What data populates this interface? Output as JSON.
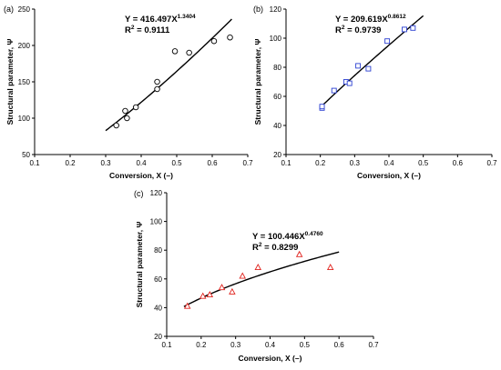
{
  "chart_data": [
    {
      "type": "scatter",
      "panel_label": "(a)",
      "xlabel": "Conversion, X (–)",
      "ylabel": "Structural parameter, Ψ",
      "xlim": [
        0.1,
        0.7
      ],
      "ylim": [
        50,
        250
      ],
      "xticks": [
        "0.1",
        "0.2",
        "0.3",
        "0.4",
        "0.5",
        "0.6",
        "0.7"
      ],
      "yticks": [
        "50",
        "100",
        "150",
        "200",
        "250"
      ],
      "grid": false,
      "marker": "circle",
      "marker_color": "#000000",
      "fit_color": "#000000",
      "fit": {
        "a": 416.497,
        "b": 1.3404,
        "x_range": [
          0.3,
          0.655
        ]
      },
      "equation": {
        "prefix": "Y = 416.497X",
        "exponent": "1.3404",
        "r2_prefix": "R",
        "r2_exponent": "2",
        "r2_value": " = 0.9111"
      },
      "points": [
        {
          "x": 0.33,
          "y": 90
        },
        {
          "x": 0.355,
          "y": 110
        },
        {
          "x": 0.36,
          "y": 100
        },
        {
          "x": 0.385,
          "y": 115
        },
        {
          "x": 0.445,
          "y": 140
        },
        {
          "x": 0.445,
          "y": 150
        },
        {
          "x": 0.495,
          "y": 192
        },
        {
          "x": 0.535,
          "y": 190
        },
        {
          "x": 0.605,
          "y": 206
        },
        {
          "x": 0.65,
          "y": 211
        }
      ]
    },
    {
      "type": "scatter",
      "panel_label": "(b)",
      "xlabel": "Conversion, X (–)",
      "ylabel": "Structural parameter, Ψ",
      "xlim": [
        0.1,
        0.7
      ],
      "ylim": [
        20,
        120
      ],
      "xticks": [
        "0.1",
        "0.2",
        "0.3",
        "0.4",
        "0.5",
        "0.6",
        "0.7"
      ],
      "yticks": [
        "20",
        "40",
        "60",
        "80",
        "100",
        "120"
      ],
      "grid": false,
      "marker": "square",
      "marker_color": "#2a3fd1",
      "fit_color": "#000000",
      "fit": {
        "a": 209.619,
        "b": 0.8612,
        "x_range": [
          0.2,
          0.5
        ]
      },
      "equation": {
        "prefix": "Y = 209.619X",
        "exponent": "0.8612",
        "r2_prefix": "R",
        "r2_exponent": "2",
        "r2_value": " = 0.9739"
      },
      "points": [
        {
          "x": 0.205,
          "y": 52
        },
        {
          "x": 0.205,
          "y": 53
        },
        {
          "x": 0.24,
          "y": 64
        },
        {
          "x": 0.275,
          "y": 70
        },
        {
          "x": 0.285,
          "y": 69
        },
        {
          "x": 0.31,
          "y": 81
        },
        {
          "x": 0.34,
          "y": 79
        },
        {
          "x": 0.395,
          "y": 98
        },
        {
          "x": 0.445,
          "y": 106
        },
        {
          "x": 0.47,
          "y": 107
        }
      ]
    },
    {
      "type": "scatter",
      "panel_label": "(c)",
      "xlabel": "Conversion, X (–)",
      "ylabel": "Structural parameter, Ψ",
      "xlim": [
        0.1,
        0.7
      ],
      "ylim": [
        20,
        120
      ],
      "xticks": [
        "0.1",
        "0.2",
        "0.3",
        "0.4",
        "0.5",
        "0.6",
        "0.7"
      ],
      "yticks": [
        "20",
        "40",
        "60",
        "80",
        "100",
        "120"
      ],
      "grid": false,
      "marker": "triangle",
      "marker_color": "#e0201b",
      "fit_color": "#000000",
      "fit": {
        "a": 100.446,
        "b": 0.476,
        "x_range": [
          0.15,
          0.6
        ]
      },
      "equation": {
        "prefix": "Y = 100.446X",
        "exponent": "0.4760",
        "r2_prefix": "R",
        "r2_exponent": "2",
        "r2_value": " = 0.8299"
      },
      "points": [
        {
          "x": 0.16,
          "y": 41
        },
        {
          "x": 0.205,
          "y": 48
        },
        {
          "x": 0.225,
          "y": 49
        },
        {
          "x": 0.26,
          "y": 54
        },
        {
          "x": 0.29,
          "y": 51
        },
        {
          "x": 0.32,
          "y": 62
        },
        {
          "x": 0.365,
          "y": 68
        },
        {
          "x": 0.485,
          "y": 77
        },
        {
          "x": 0.575,
          "y": 68
        }
      ]
    }
  ]
}
